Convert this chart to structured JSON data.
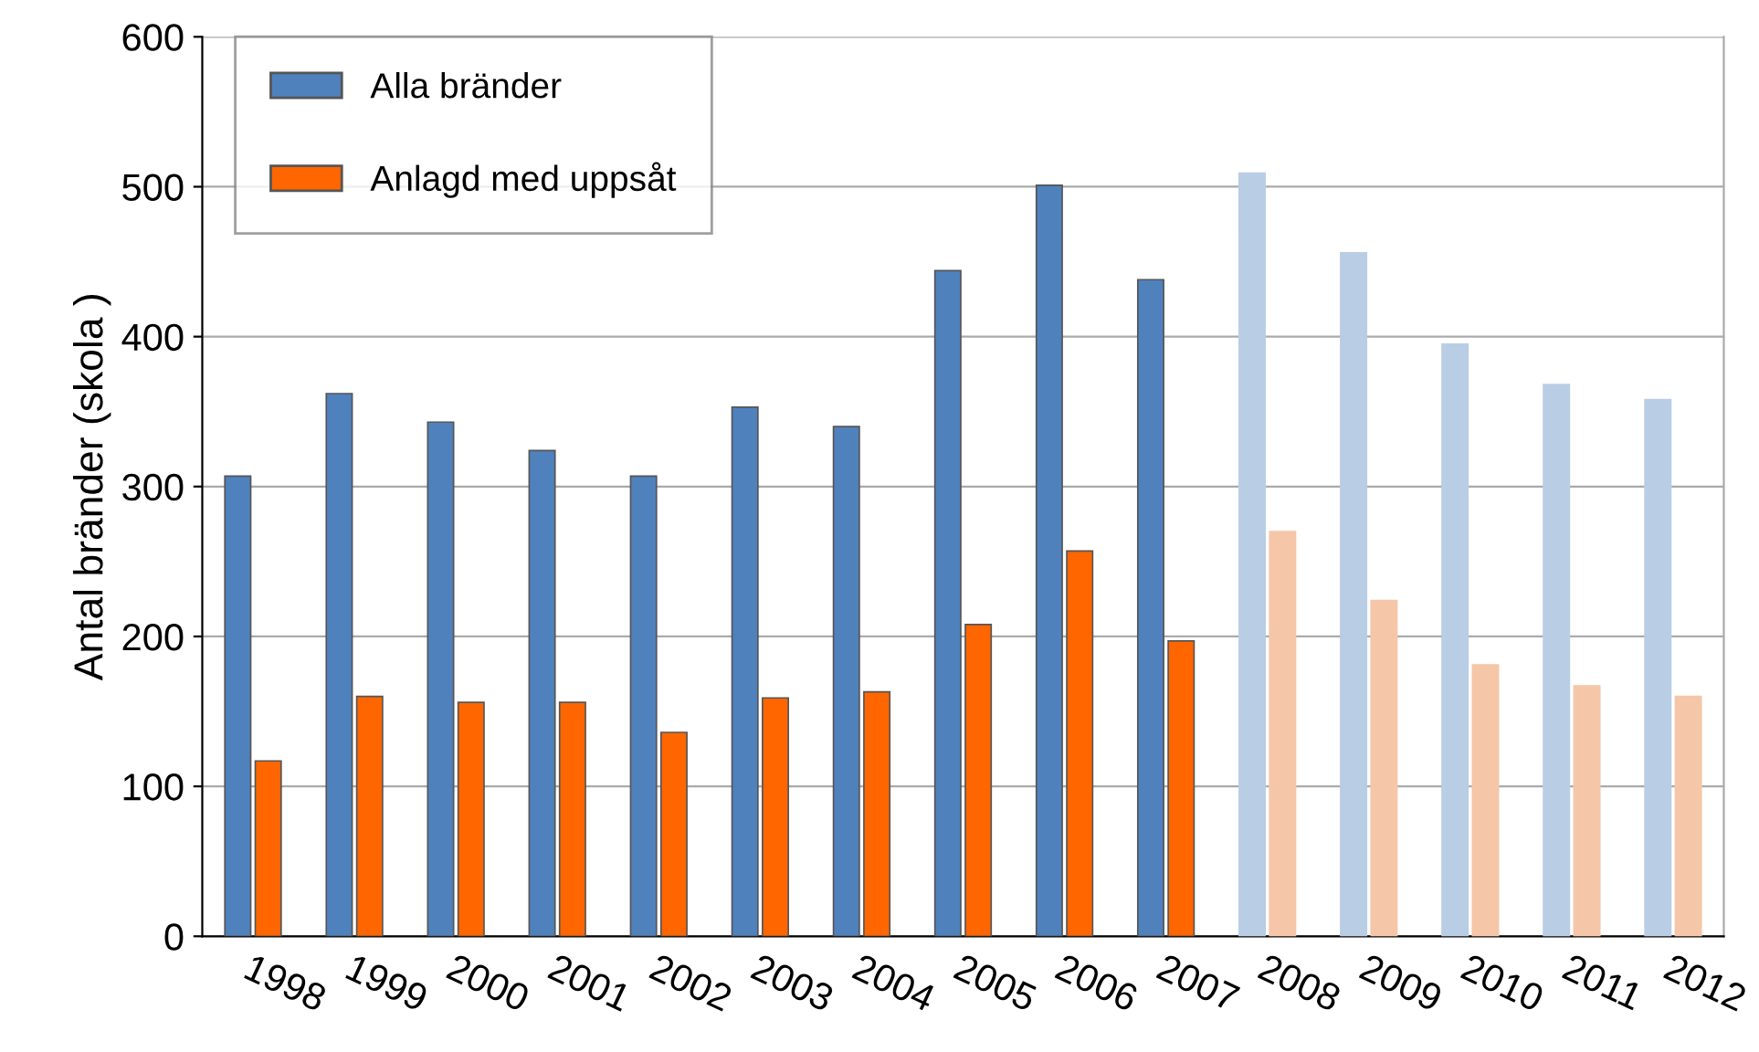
{
  "chart_data": {
    "type": "bar",
    "ylabel": "Antal bränder (skola )",
    "categories": [
      "1998",
      "1999",
      "2000",
      "2001",
      "2002",
      "2003",
      "2004",
      "2005",
      "2006",
      "2007",
      "2008",
      "2009",
      "2010",
      "2011",
      "2012"
    ],
    "series": [
      {
        "name": "Alla bränder",
        "color": "#4f81bd",
        "colors": [
          "#4f81bd",
          "#4f81bd",
          "#4f81bd",
          "#4f81bd",
          "#4f81bd",
          "#4f81bd",
          "#4f81bd",
          "#4f81bd",
          "#4f81bd",
          "#4f81bd",
          "#b9cde5",
          "#b9cde5",
          "#b9cde5",
          "#b9cde5",
          "#b9cde5"
        ],
        "values": [
          307,
          362,
          343,
          324,
          307,
          353,
          340,
          444,
          501,
          438,
          509,
          456,
          395,
          368,
          358
        ]
      },
      {
        "name": "Anlagd med uppsåt",
        "color": "#ff6600",
        "colors": [
          "#ff6600",
          "#ff6600",
          "#ff6600",
          "#ff6600",
          "#ff6600",
          "#ff6600",
          "#ff6600",
          "#ff6600",
          "#ff6600",
          "#ff6600",
          "#f5c6a8",
          "#f5c6a8",
          "#f5c6a8",
          "#f5c6a8",
          "#f5c6a8"
        ],
        "values": [
          117,
          160,
          156,
          156,
          136,
          159,
          163,
          208,
          257,
          197,
          270,
          224,
          181,
          167,
          160
        ]
      }
    ],
    "ylim": [
      0,
      600
    ],
    "yticks": [
      0,
      100,
      200,
      300,
      400,
      500,
      600
    ],
    "grid": "y",
    "legend": "top left"
  }
}
